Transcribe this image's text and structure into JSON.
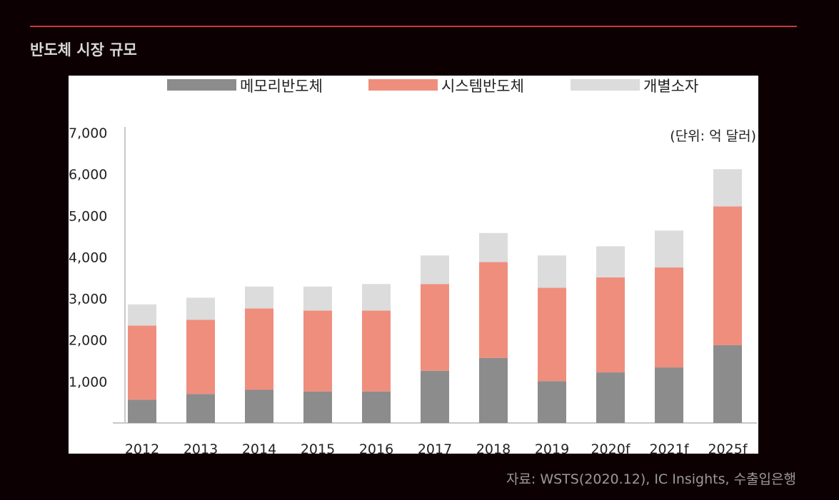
{
  "header": {
    "title": "반도체 시장 규모"
  },
  "footer": {
    "source": "자료: WSTS(2020.12), IC Insights, 수출입은행"
  },
  "colors": {
    "memory": "#8c8c8c",
    "system": "#ef8e7d",
    "discrete": "#dcdcdc",
    "accent": "#c9373f"
  },
  "chart_data": {
    "type": "bar",
    "stacked": true,
    "categories": [
      "2012",
      "2013",
      "2014",
      "2015",
      "2016",
      "2017",
      "2018",
      "2019",
      "2020f",
      "2021f",
      "2025f"
    ],
    "series": [
      {
        "name": "메모리반도체",
        "values": [
          560,
          700,
          800,
          760,
          760,
          1260,
          1570,
          1010,
          1220,
          1340,
          1880
        ]
      },
      {
        "name": "시스템반도체",
        "values": [
          1790,
          1790,
          1960,
          1950,
          1950,
          2090,
          2310,
          2250,
          2290,
          2410,
          3340
        ]
      },
      {
        "name": "개별소자",
        "values": [
          510,
          530,
          530,
          580,
          640,
          690,
          700,
          780,
          750,
          890,
          900
        ]
      }
    ],
    "yticks": [
      "1,000",
      "2,000",
      "3,000",
      "4,000",
      "5,000",
      "6,000",
      "7,000"
    ],
    "ylim": [
      0,
      7000
    ],
    "unit_label": "(단위: 억 달러)",
    "legend_position": "top",
    "grid": false
  }
}
